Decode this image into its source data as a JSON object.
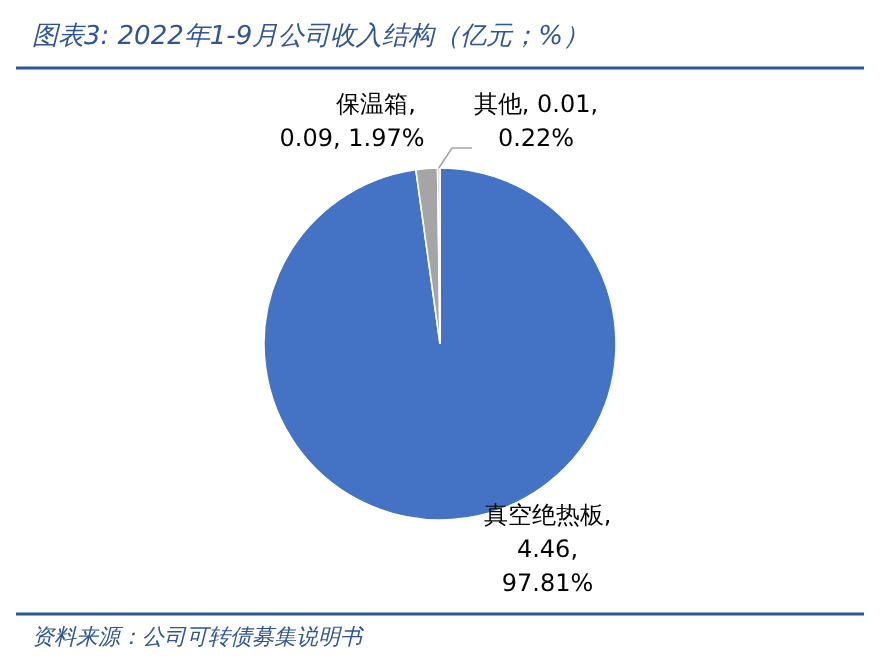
{
  "chart_data": {
    "type": "pie",
    "title": "图表3: 2022年1-9月公司收入结构（亿元；%）",
    "categories": [
      "真空绝热板",
      "保温箱",
      "其他"
    ],
    "values": [
      4.46,
      0.09,
      0.01
    ],
    "value_labels": [
      ", 4.46, 97.81%",
      ", 0.09, 1.97%",
      ", 0.01, 0.22%"
    ],
    "colors": [
      "#4472c4",
      "#a5a5a5",
      "#bfbfbf"
    ],
    "annotations": [
      "资料来源：公司可转债募集说明书"
    ]
  }
}
